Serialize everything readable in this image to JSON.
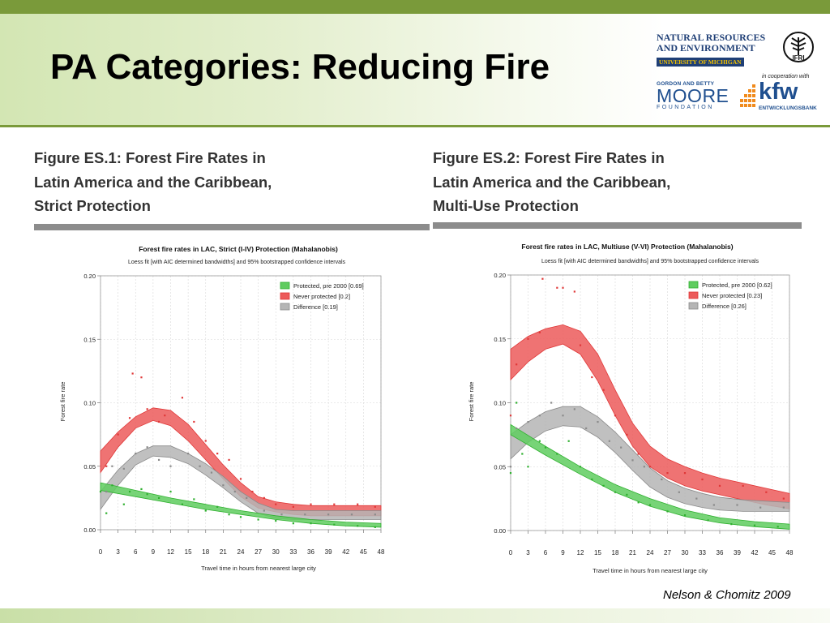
{
  "slide": {
    "title": "PA Categories: Reducing Fire",
    "citation": "Nelson & Chomitz 2009"
  },
  "logos": {
    "nre_line1": "NATURAL RESOURCES",
    "nre_line2": "AND ENVIRONMENT",
    "nre_line3": "UNIVERSITY OF MICHIGAN",
    "ifri": "IFRI",
    "cooperation": "in cooperation with",
    "moore_top": "GORDON AND BETTY",
    "moore_big": "MOORE",
    "moore_bottom": "FOUNDATION",
    "kfw_name": "kfw",
    "kfw_sub": "ENTWICKLUNGSBANK"
  },
  "figures": [
    {
      "title_lines": [
        "Figure ES.1: Forest Fire Rates in",
        "Latin America and the Caribbean,",
        "Strict Protection"
      ]
    },
    {
      "title_lines": [
        "Figure ES.2: Forest Fire Rates in",
        "Latin America and the Caribbean,",
        "Multi-Use Protection"
      ]
    }
  ],
  "colors": {
    "protected": "#2fb02f",
    "never": "#e03838",
    "difference": "#8a8a8a",
    "protected_fill": "#5fcc5f",
    "never_fill": "#ec5a5a",
    "difference_fill": "#b5b5b5"
  },
  "chart_data": [
    {
      "type": "area",
      "title": "Forest fire rates in LAC, Strict (I-IV) Protection (Mahalanobis)",
      "subtitle": "Loess fit [with AIC determined bandwidths] and 95% bootstrapped confidence intervals",
      "xlabel": "Travel time in hours from nearest large city",
      "ylabel": "Forest fire rate",
      "xlim": [
        0,
        48
      ],
      "ylim": [
        0,
        0.2
      ],
      "xticks": [
        "0",
        "3",
        "6",
        "9",
        "12",
        "15",
        "18",
        "21",
        "24",
        "27",
        "30",
        "33",
        "36",
        "39",
        "42",
        "45",
        "48"
      ],
      "yticks": [
        "0.00",
        "0.05",
        "0.10",
        "0.15",
        "0.20"
      ],
      "legend_position": "top-right",
      "grid": true,
      "series": [
        {
          "name": "Protected, pre 2000 [0.69]",
          "color_key": "protected",
          "x": [
            0,
            6,
            12,
            18,
            24,
            30,
            36,
            42,
            48
          ],
          "lower": [
            0.031,
            0.026,
            0.021,
            0.016,
            0.012,
            0.008,
            0.005,
            0.003,
            0.002
          ],
          "upper": [
            0.037,
            0.031,
            0.025,
            0.02,
            0.015,
            0.011,
            0.008,
            0.006,
            0.005
          ],
          "points": [
            [
              0,
              0.03
            ],
            [
              1,
              0.013
            ],
            [
              2,
              0.035
            ],
            [
              4,
              0.02
            ],
            [
              5,
              0.03
            ],
            [
              7,
              0.032
            ],
            [
              8,
              0.028
            ],
            [
              10,
              0.025
            ],
            [
              12,
              0.03
            ],
            [
              14,
              0.02
            ],
            [
              16,
              0.024
            ],
            [
              18,
              0.015
            ],
            [
              20,
              0.018
            ],
            [
              22,
              0.012
            ],
            [
              24,
              0.01
            ],
            [
              27,
              0.008
            ],
            [
              30,
              0.007
            ],
            [
              33,
              0.005
            ],
            [
              36,
              0.005
            ],
            [
              40,
              0.004
            ],
            [
              44,
              0.003
            ],
            [
              47,
              0.002
            ]
          ]
        },
        {
          "name": "Never protected [0.2]",
          "color_key": "never",
          "x": [
            0,
            3,
            6,
            9,
            12,
            15,
            18,
            21,
            24,
            27,
            30,
            33,
            36,
            40,
            44,
            48
          ],
          "lower": [
            0.045,
            0.065,
            0.08,
            0.086,
            0.082,
            0.07,
            0.055,
            0.04,
            0.026,
            0.017,
            0.014,
            0.012,
            0.011,
            0.011,
            0.011,
            0.011
          ],
          "upper": [
            0.062,
            0.077,
            0.089,
            0.096,
            0.094,
            0.083,
            0.067,
            0.051,
            0.037,
            0.026,
            0.022,
            0.02,
            0.019,
            0.019,
            0.019,
            0.019
          ],
          "points": [
            [
              1,
              0.05
            ],
            [
              3,
              0.075
            ],
            [
              5,
              0.088
            ],
            [
              5.5,
              0.123
            ],
            [
              7,
              0.12
            ],
            [
              8,
              0.095
            ],
            [
              10,
              0.085
            ],
            [
              11,
              0.09
            ],
            [
              14,
              0.104
            ],
            [
              16,
              0.085
            ],
            [
              18,
              0.07
            ],
            [
              20,
              0.06
            ],
            [
              22,
              0.055
            ],
            [
              24,
              0.04
            ],
            [
              26,
              0.03
            ],
            [
              28,
              0.025
            ],
            [
              30,
              0.02
            ],
            [
              33,
              0.018
            ],
            [
              36,
              0.02
            ],
            [
              40,
              0.02
            ],
            [
              44,
              0.02
            ],
            [
              47,
              0.018
            ]
          ]
        },
        {
          "name": "Difference [0.19]",
          "color_key": "difference",
          "x": [
            0,
            3,
            6,
            9,
            12,
            15,
            18,
            21,
            24,
            27,
            30,
            33,
            36,
            40,
            44,
            48
          ],
          "lower": [
            0.016,
            0.035,
            0.051,
            0.058,
            0.057,
            0.052,
            0.043,
            0.033,
            0.022,
            0.013,
            0.009,
            0.008,
            0.008,
            0.008,
            0.008,
            0.008
          ],
          "upper": [
            0.03,
            0.047,
            0.06,
            0.066,
            0.066,
            0.06,
            0.052,
            0.042,
            0.03,
            0.021,
            0.016,
            0.015,
            0.015,
            0.015,
            0.015,
            0.015
          ],
          "points": [
            [
              1,
              0.03
            ],
            [
              2,
              0.05
            ],
            [
              4,
              0.048
            ],
            [
              6,
              0.06
            ],
            [
              8,
              0.065
            ],
            [
              10,
              0.055
            ],
            [
              12,
              0.05
            ],
            [
              15,
              0.06
            ],
            [
              17,
              0.05
            ],
            [
              19,
              0.045
            ],
            [
              21,
              0.035
            ],
            [
              23,
              0.03
            ],
            [
              25,
              0.025
            ],
            [
              28,
              0.015
            ],
            [
              31,
              0.012
            ],
            [
              35,
              0.012
            ],
            [
              39,
              0.012
            ],
            [
              43,
              0.012
            ],
            [
              47,
              0.012
            ]
          ]
        }
      ]
    },
    {
      "type": "area",
      "title": "Forest fire rates in LAC, Multiuse (V-VI) Protection (Mahalanobis)",
      "subtitle": "Loess fit [with AIC determined bandwidths] and 95% bootstrapped confidence intervals",
      "xlabel": "Travel time in hours from nearest large city",
      "ylabel": "Forest fire rate",
      "xlim": [
        0,
        48
      ],
      "ylim": [
        0,
        0.2
      ],
      "xticks": [
        "0",
        "3",
        "6",
        "9",
        "12",
        "15",
        "18",
        "21",
        "24",
        "27",
        "30",
        "33",
        "36",
        "39",
        "42",
        "45",
        "48"
      ],
      "yticks": [
        "0.00",
        "0.05",
        "0.10",
        "0.15",
        "0.20"
      ],
      "legend_position": "top-right",
      "grid": true,
      "series": [
        {
          "name": "Protected, pre 2000 [0.62]",
          "color_key": "protected",
          "x": [
            0,
            6,
            12,
            18,
            24,
            30,
            36,
            42,
            48
          ],
          "lower": [
            0.075,
            0.059,
            0.044,
            0.03,
            0.019,
            0.011,
            0.006,
            0.003,
            0.001
          ],
          "upper": [
            0.083,
            0.066,
            0.05,
            0.036,
            0.025,
            0.016,
            0.01,
            0.007,
            0.005
          ],
          "points": [
            [
              0,
              0.045
            ],
            [
              1,
              0.1
            ],
            [
              2,
              0.06
            ],
            [
              3,
              0.05
            ],
            [
              5,
              0.07
            ],
            [
              6,
              0.065
            ],
            [
              8,
              0.06
            ],
            [
              10,
              0.07
            ],
            [
              12,
              0.05
            ],
            [
              14,
              0.04
            ],
            [
              16,
              0.035
            ],
            [
              18,
              0.03
            ],
            [
              20,
              0.028
            ],
            [
              22,
              0.022
            ],
            [
              24,
              0.02
            ],
            [
              27,
              0.015
            ],
            [
              30,
              0.012
            ],
            [
              34,
              0.008
            ],
            [
              38,
              0.005
            ],
            [
              42,
              0.004
            ],
            [
              46,
              0.003
            ]
          ]
        },
        {
          "name": "Never protected [0.23]",
          "color_key": "never",
          "x": [
            0,
            3,
            6,
            9,
            12,
            15,
            18,
            21,
            24,
            27,
            30,
            33,
            36,
            40,
            44,
            48
          ],
          "lower": [
            0.118,
            0.132,
            0.142,
            0.146,
            0.138,
            0.117,
            0.09,
            0.066,
            0.05,
            0.041,
            0.035,
            0.031,
            0.028,
            0.024,
            0.02,
            0.017
          ],
          "upper": [
            0.142,
            0.152,
            0.158,
            0.161,
            0.156,
            0.138,
            0.11,
            0.084,
            0.066,
            0.056,
            0.05,
            0.045,
            0.041,
            0.037,
            0.033,
            0.029
          ],
          "points": [
            [
              0,
              0.09
            ],
            [
              1,
              0.13
            ],
            [
              3,
              0.15
            ],
            [
              5,
              0.155
            ],
            [
              5.5,
              0.197
            ],
            [
              8,
              0.19
            ],
            [
              9,
              0.19
            ],
            [
              11,
              0.187
            ],
            [
              12,
              0.145
            ],
            [
              14,
              0.12
            ],
            [
              16,
              0.11
            ],
            [
              18,
              0.09
            ],
            [
              20,
              0.075
            ],
            [
              22,
              0.06
            ],
            [
              24,
              0.05
            ],
            [
              27,
              0.045
            ],
            [
              30,
              0.045
            ],
            [
              33,
              0.04
            ],
            [
              36,
              0.035
            ],
            [
              40,
              0.035
            ],
            [
              44,
              0.03
            ],
            [
              47,
              0.025
            ]
          ]
        },
        {
          "name": "Difference [0.26]",
          "color_key": "difference",
          "x": [
            0,
            3,
            6,
            9,
            12,
            15,
            18,
            21,
            24,
            27,
            30,
            33,
            36,
            40,
            44,
            48
          ],
          "lower": [
            0.056,
            0.069,
            0.078,
            0.082,
            0.081,
            0.073,
            0.061,
            0.047,
            0.034,
            0.026,
            0.021,
            0.018,
            0.016,
            0.015,
            0.015,
            0.015
          ],
          "upper": [
            0.075,
            0.085,
            0.093,
            0.097,
            0.097,
            0.089,
            0.077,
            0.063,
            0.049,
            0.039,
            0.033,
            0.029,
            0.026,
            0.024,
            0.023,
            0.022
          ],
          "points": [
            [
              0,
              0.05
            ],
            [
              1,
              0.08
            ],
            [
              3,
              0.085
            ],
            [
              5,
              0.09
            ],
            [
              7,
              0.1
            ],
            [
              9,
              0.09
            ],
            [
              11,
              0.095
            ],
            [
              13,
              0.08
            ],
            [
              15,
              0.085
            ],
            [
              17,
              0.07
            ],
            [
              19,
              0.065
            ],
            [
              21,
              0.055
            ],
            [
              23,
              0.05
            ],
            [
              26,
              0.04
            ],
            [
              29,
              0.03
            ],
            [
              32,
              0.025
            ],
            [
              35,
              0.02
            ],
            [
              39,
              0.02
            ],
            [
              43,
              0.018
            ],
            [
              47,
              0.018
            ]
          ]
        }
      ]
    }
  ]
}
